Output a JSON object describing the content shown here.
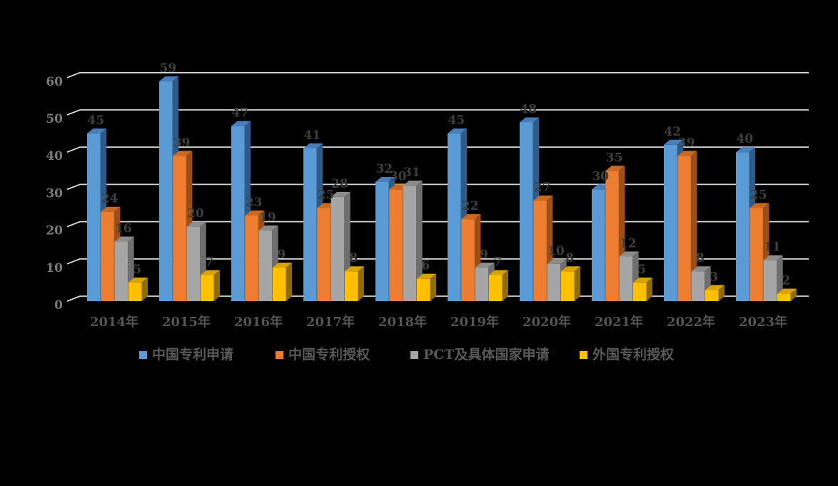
{
  "chart_data": {
    "type": "bar",
    "style": "3d-clustered-column",
    "background": "#000000",
    "title": "",
    "xlabel": "",
    "ylabel": "",
    "categories": [
      "2014年",
      "2015年",
      "2016年",
      "2017年",
      "2018年",
      "2019年",
      "2020年",
      "2021年",
      "2022年",
      "2023年"
    ],
    "series": [
      {
        "name": "中国专利申请",
        "color": "#5B9BD5",
        "top_color": "#4A7EBA",
        "side_color": "#2F5B88",
        "values": [
          45,
          59,
          47,
          41,
          32,
          45,
          48,
          30,
          42,
          40
        ]
      },
      {
        "name": "中国专利授权",
        "color": "#ED7D31",
        "top_color": "#C96A24",
        "side_color": "#9C4F17",
        "values": [
          24,
          39,
          23,
          25,
          30,
          22,
          27,
          35,
          39,
          25
        ]
      },
      {
        "name": "PCT及具体国家申请",
        "color": "#A5A5A5",
        "top_color": "#8C8C8C",
        "side_color": "#6E6E6E",
        "values": [
          16,
          20,
          19,
          28,
          31,
          9,
          10,
          12,
          8,
          11
        ]
      },
      {
        "name": "外国专利授权",
        "color": "#FFC000",
        "top_color": "#D9A300",
        "side_color": "#8F6C00",
        "values": [
          5,
          7,
          9,
          8,
          6,
          7,
          8,
          5,
          3,
          2
        ]
      }
    ],
    "y_axis": {
      "min": 0,
      "max": 60,
      "step": 10,
      "tick_labels": [
        "0",
        "10",
        "20",
        "30",
        "40",
        "50",
        "60"
      ]
    },
    "grid": true,
    "data_labels_shown": true,
    "legend_position": "bottom",
    "colors": {
      "gridline": "#D9D9D9",
      "y_tick_text": "#7A7A7A",
      "category_text": "#555555",
      "data_label_text": "#3F3F3F",
      "legend_text": "#595959"
    }
  }
}
